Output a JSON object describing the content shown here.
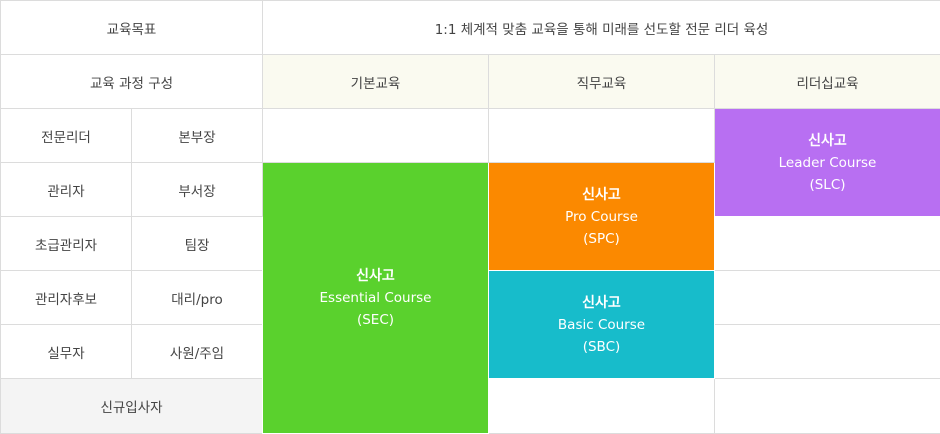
{
  "header": {
    "goal_label": "교육목표",
    "goal_text": "1:1 체계적 맞춤 교육을 통해 미래를 선도할 전문 리더 육성",
    "structure_label": "교육 과정 구성",
    "columns": [
      "기본교육",
      "직무교육",
      "리더십교육"
    ]
  },
  "levels": [
    {
      "role": "전문리더",
      "title": "본부장"
    },
    {
      "role": "관리자",
      "title": "부서장"
    },
    {
      "role": "초급관리자",
      "title": "팀장"
    },
    {
      "role": "관리자후보",
      "title": "대리/pro"
    },
    {
      "role": "실무자",
      "title": "사원/주임"
    }
  ],
  "new_hire": "신규입사자",
  "courses": {
    "sec": {
      "name": "신사고",
      "line1": "Essential Course",
      "line2": "(SEC)",
      "color": "#5ad12d"
    },
    "spc": {
      "name": "신사고",
      "line1": "Pro Course",
      "line2": "(SPC)",
      "color": "#fb8900"
    },
    "sbc": {
      "name": "신사고",
      "line1": "Basic Course",
      "line2": "(SBC)",
      "color": "#17bccb"
    },
    "slc": {
      "name": "신사고",
      "line1": "Leader Course",
      "line2": "(SLC)",
      "color": "#b86ff2"
    }
  }
}
